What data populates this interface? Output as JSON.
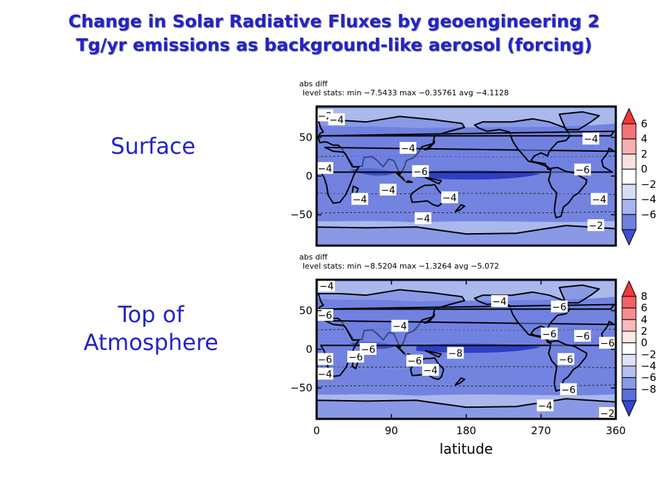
{
  "title": {
    "line1": "Change in Solar Radiative Fluxes by geoengineering 2",
    "line2": "Tg/yr emissions as background-like aerosol (forcing)"
  },
  "labels": {
    "surface": "Surface",
    "toa_line1": "Top of",
    "toa_line2": "Atmosphere"
  },
  "colors": {
    "title": "#2323c8",
    "ocean_fill": "#7384e0",
    "dark_band": "#2d3fc4",
    "light_band": "#aab8ec",
    "coast": "#000000"
  },
  "chart_data": [
    {
      "type": "heatmap",
      "name": "surface",
      "header_line1": "abs diff",
      "header_line2": "level stats:  min −7.5433 max −0.35761 avg −4.1128",
      "y_ticks": [
        {
          "v": 50,
          "label": "50"
        },
        {
          "v": 0,
          "label": "0"
        },
        {
          "v": -50,
          "label": "−50"
        }
      ],
      "xlim": [
        0,
        360
      ],
      "ylim": [
        -90,
        90
      ],
      "contour_labels": [
        {
          "lon": 10,
          "lat": 78,
          "text": "−2"
        },
        {
          "lon": 24,
          "lat": 73,
          "text": "−4"
        },
        {
          "lon": 5,
          "lat": 10,
          "text": "−4"
        },
        {
          "lon": 110,
          "lat": 36,
          "text": "−4"
        },
        {
          "lon": 125,
          "lat": 6,
          "text": "−6"
        },
        {
          "lon": 86,
          "lat": -18,
          "text": "−4"
        },
        {
          "lon": 52,
          "lat": -30,
          "text": "−4"
        },
        {
          "lon": 160,
          "lat": -28,
          "text": "−4"
        },
        {
          "lon": 128,
          "lat": -55,
          "text": "−4"
        },
        {
          "lon": 330,
          "lat": 48,
          "text": "−4"
        },
        {
          "lon": 320,
          "lat": 8,
          "text": "−6"
        },
        {
          "lon": 340,
          "lat": -30,
          "text": "−4"
        },
        {
          "lon": 336,
          "lat": -64,
          "text": "−2"
        }
      ],
      "colorbar": {
        "ticks": [
          "6",
          "4",
          "2",
          "0",
          "−2",
          "−4",
          "−6"
        ],
        "colors": [
          "#f2363a",
          "#f47377",
          "#f8afb2",
          "#fbe0e0",
          "#ffffff",
          "#d8dcf6",
          "#a9b4ec",
          "#6e80e0",
          "#3a4fd2"
        ]
      }
    },
    {
      "type": "heatmap",
      "name": "top_of_atmosphere",
      "header_line1": "abs diff",
      "header_line2": "level stats:  min −8.5204 max −1.3264 avg −5.072",
      "y_ticks": [
        {
          "v": 50,
          "label": "50"
        },
        {
          "v": 0,
          "label": "0"
        },
        {
          "v": -50,
          "label": "−50"
        }
      ],
      "x_ticks": [
        {
          "v": 0,
          "label": "0"
        },
        {
          "v": 90,
          "label": "90"
        },
        {
          "v": 180,
          "label": "180"
        },
        {
          "v": 270,
          "label": "270"
        },
        {
          "v": 360,
          "label": "360"
        }
      ],
      "xlabel": "latitude",
      "xlim": [
        0,
        360
      ],
      "ylim": [
        -90,
        90
      ],
      "contour_labels": [
        {
          "lon": 12,
          "lat": 82,
          "text": "−4"
        },
        {
          "lon": 10,
          "lat": 44,
          "text": "−6"
        },
        {
          "lon": 100,
          "lat": 30,
          "text": "−4"
        },
        {
          "lon": 220,
          "lat": 62,
          "text": "−4"
        },
        {
          "lon": 292,
          "lat": 55,
          "text": "−6"
        },
        {
          "lon": 280,
          "lat": 20,
          "text": "−6"
        },
        {
          "lon": 320,
          "lat": 17,
          "text": "−6"
        },
        {
          "lon": 360,
          "lat": 8,
          "text": "−6"
        },
        {
          "lon": 5,
          "lat": -13,
          "text": "−6"
        },
        {
          "lon": 5,
          "lat": -32,
          "text": "−4"
        },
        {
          "lon": 47,
          "lat": -10,
          "text": "−6"
        },
        {
          "lon": 62,
          "lat": 0,
          "text": "−6"
        },
        {
          "lon": 118,
          "lat": -15,
          "text": "−6"
        },
        {
          "lon": 137,
          "lat": -27,
          "text": "−4"
        },
        {
          "lon": 167,
          "lat": -5,
          "text": "−8"
        },
        {
          "lon": 300,
          "lat": -13,
          "text": "−6"
        },
        {
          "lon": 303,
          "lat": -52,
          "text": "−6"
        },
        {
          "lon": 275,
          "lat": -73,
          "text": "−4"
        },
        {
          "lon": 354,
          "lat": -93,
          "text": "−2"
        }
      ],
      "colorbar": {
        "ticks": [
          "8",
          "6",
          "4",
          "2",
          "0",
          "−2",
          "−4",
          "−6",
          "−8"
        ],
        "colors": [
          "#f2363a",
          "#f36065",
          "#f58d90",
          "#f9babc",
          "#fde6e6",
          "#ffffff",
          "#dfe3f8",
          "#b5bff0",
          "#8a99e6",
          "#5a6dda",
          "#3347cf"
        ]
      }
    }
  ]
}
